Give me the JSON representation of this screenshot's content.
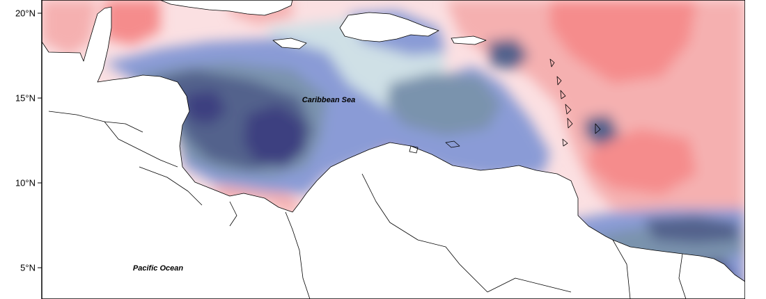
{
  "map": {
    "latitude_ticks": [
      {
        "label": "20°N",
        "lat": 20
      },
      {
        "label": "15°N",
        "lat": 15
      },
      {
        "label": "10°N",
        "lat": 10
      },
      {
        "label": "5°N",
        "lat": 5
      }
    ],
    "region_labels": {
      "caribbean_sea": "Caribbean Sea",
      "pacific_ocean": "Pacific Ocean"
    },
    "colors": {
      "positive_strong": "#f58c8c",
      "positive_medium": "#f5b0b0",
      "positive_light": "#fbe0e2",
      "neutral": "#cfe0e6",
      "negative_light": "#8a9bd6",
      "negative_medium": "#7a93ad",
      "negative_strong": "#53628c",
      "negative_deep": "#3e3f80"
    }
  }
}
